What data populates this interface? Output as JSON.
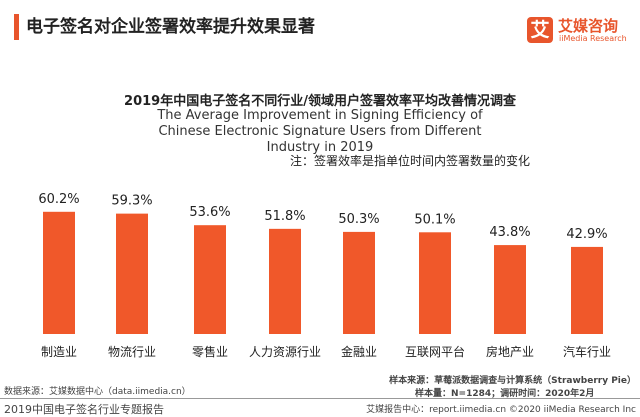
{
  "header": {
    "title": "电子签名对企业签署效率提升效果显著",
    "logo_mark": "艾",
    "logo_cn": "艾媒咨询",
    "logo_en": "iiMedia Research"
  },
  "chart_data": {
    "type": "bar",
    "title": "2019年中国电子签名不同行业/领域用户签署效率平均改善情况调查",
    "subtitle": "The Average Improvement in Signing Efficiency of Chinese Electronic Signature Users from Different Industry in 2019",
    "note": "注：签署效率是指单位时间内签署数量的变化",
    "categories": [
      "制造业",
      "物流行业",
      "零售业",
      "人力资源行业",
      "金融业",
      "互联网平台",
      "房地产业",
      "汽车行业"
    ],
    "values": [
      60.2,
      59.3,
      53.6,
      51.8,
      50.3,
      50.1,
      43.8,
      42.9
    ],
    "labels": [
      "60.2%",
      "59.3%",
      "53.6%",
      "51.8%",
      "50.3%",
      "50.1%",
      "43.8%",
      "42.9%"
    ],
    "unit": "%",
    "ylim": [
      0,
      70
    ],
    "grid": false,
    "bar_color": "#f0582a"
  },
  "footer": {
    "source": "数据来源：艾媒数据中心（data.iimedia.cn）",
    "sample_source": "样本来源：草莓派数据调查与计算系统（Strawberry Pie）",
    "sample_size": "样本量：N=1284；调研时间：2020年2月",
    "report": "2019中国电子签名行业专题报告",
    "copyright": "艾媒报告中心：report.iimedia.cn ©2020 iiMedia Research Inc"
  }
}
